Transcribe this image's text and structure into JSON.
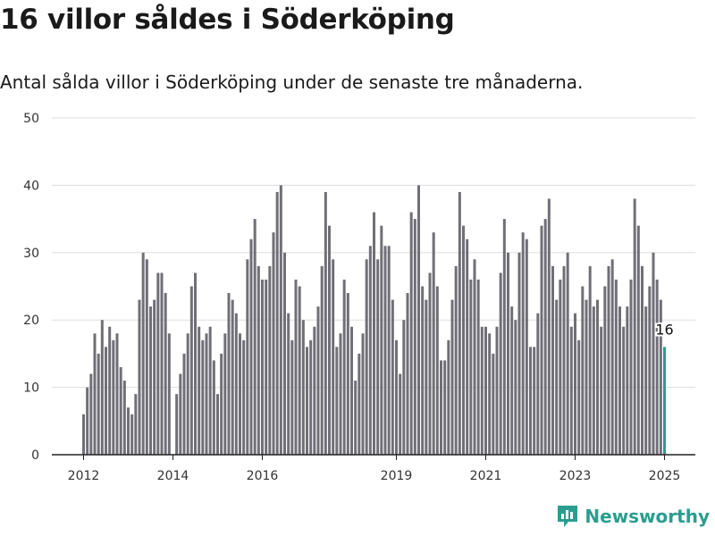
{
  "header": {
    "title": "16 villor såldes i Söderköping",
    "subtitle": "Antal sålda villor i Söderköping under de senaste tre månaderna."
  },
  "brand": {
    "name": "Newsworthy"
  },
  "colors": {
    "bar": "#706f77",
    "highlight": "#2a9d8f",
    "grid": "#dddddd"
  },
  "chart_data": {
    "type": "bar",
    "title": "16 villor såldes i Söderköping",
    "subtitle": "Antal sålda villor i Söderköping under de senaste tre månaderna.",
    "ylim": [
      0,
      50
    ],
    "yticks": [
      0,
      10,
      20,
      30,
      40,
      50
    ],
    "xticks": [
      "2012",
      "2014",
      "2016",
      "2019",
      "2021",
      "2023",
      "2025"
    ],
    "grid": true,
    "x_start": "2012-01",
    "x_end": "2025-01",
    "values": [
      6,
      10,
      12,
      18,
      15,
      20,
      16,
      19,
      17,
      18,
      13,
      11,
      7,
      6,
      9,
      23,
      30,
      29,
      22,
      23,
      27,
      27,
      24,
      18,
      0,
      9,
      12,
      15,
      18,
      25,
      27,
      19,
      17,
      18,
      19,
      14,
      9,
      15,
      18,
      24,
      23,
      21,
      18,
      17,
      29,
      32,
      35,
      28,
      26,
      26,
      28,
      33,
      39,
      40,
      30,
      21,
      17,
      26,
      25,
      20,
      16,
      17,
      19,
      22,
      28,
      39,
      34,
      29,
      16,
      18,
      26,
      24,
      19,
      11,
      15,
      18,
      29,
      31,
      36,
      29,
      34,
      31,
      31,
      23,
      17,
      12,
      20,
      24,
      36,
      35,
      40,
      25,
      23,
      27,
      33,
      25,
      14,
      14,
      17,
      23,
      28,
      39,
      34,
      32,
      26,
      29,
      26,
      19,
      19,
      18,
      15,
      19,
      27,
      35,
      30,
      22,
      20,
      30,
      33,
      32,
      16,
      16,
      21,
      34,
      35,
      38,
      28,
      23,
      26,
      28,
      30,
      19,
      21,
      17,
      25,
      23,
      28,
      22,
      23,
      19,
      25,
      28,
      29,
      26,
      22,
      19,
      22,
      26,
      38,
      34,
      28,
      22,
      25,
      30,
      26,
      23,
      16
    ],
    "highlight_last": 1,
    "annotation": {
      "label": "16"
    }
  }
}
